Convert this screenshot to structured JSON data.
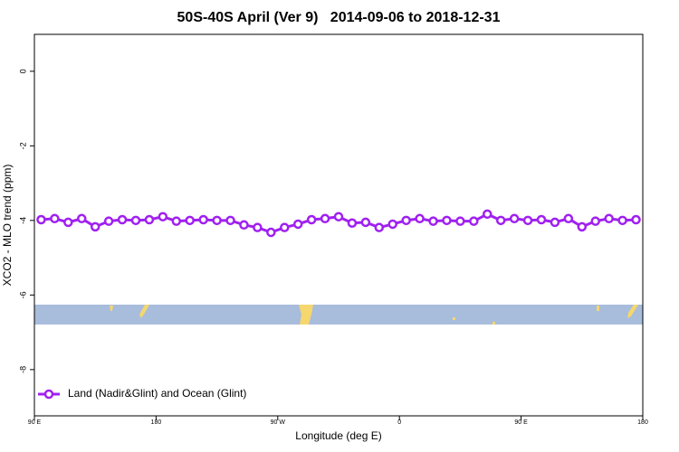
{
  "chart_data": {
    "type": "line",
    "title": "50S-40S April (Ver 9)   2014-09-06 to 2018-12-31",
    "x_label": "Longitude (deg E)",
    "y_label": "XCO2 - MLO trend (ppm)",
    "x": [
      95,
      105,
      115,
      125,
      135,
      145,
      155,
      165,
      175,
      185,
      195,
      205,
      215,
      225,
      235,
      245,
      255,
      265,
      275,
      285,
      295,
      305,
      315,
      325,
      335,
      345,
      355,
      365,
      375,
      385,
      395,
      405,
      415,
      425,
      435,
      445,
      455,
      465,
      475,
      485,
      495,
      505,
      515,
      525,
      535
    ],
    "series": [
      {
        "name": "Land (Nadir&Glint) and Ocean (Glint)",
        "color": "#a020f0",
        "values": [
          -3.98,
          -3.95,
          -4.05,
          -3.95,
          -4.17,
          -4.02,
          -3.98,
          -4.0,
          -3.98,
          -3.9,
          -4.02,
          -4.0,
          -3.98,
          -4.0,
          -4.0,
          -4.12,
          -4.19,
          -4.32,
          -4.19,
          -4.1,
          -3.98,
          -3.95,
          -3.9,
          -4.07,
          -4.05,
          -4.19,
          -4.1,
          -4.0,
          -3.95,
          -4.02,
          -4.0,
          -4.02,
          -4.02,
          -3.83,
          -4.0,
          -3.95,
          -4.0,
          -3.98,
          -4.05,
          -3.95,
          -4.17,
          -4.02,
          -3.95,
          -4.0,
          -3.98
        ]
      }
    ],
    "xlim": [
      90,
      540
    ],
    "xticks": [
      {
        "value": 90,
        "label": "90 E"
      },
      180,
      {
        "value": 270,
        "label": "90 W"
      },
      {
        "value": 360,
        "label": "0"
      },
      {
        "value": 450,
        "label": "90 E"
      },
      {
        "value": 540,
        "label": "180"
      }
    ],
    "ylim": [
      -9.24,
      0.99
    ],
    "yticks": [
      0,
      -2,
      -4,
      -6,
      -8
    ],
    "legend": "bottom-left"
  }
}
